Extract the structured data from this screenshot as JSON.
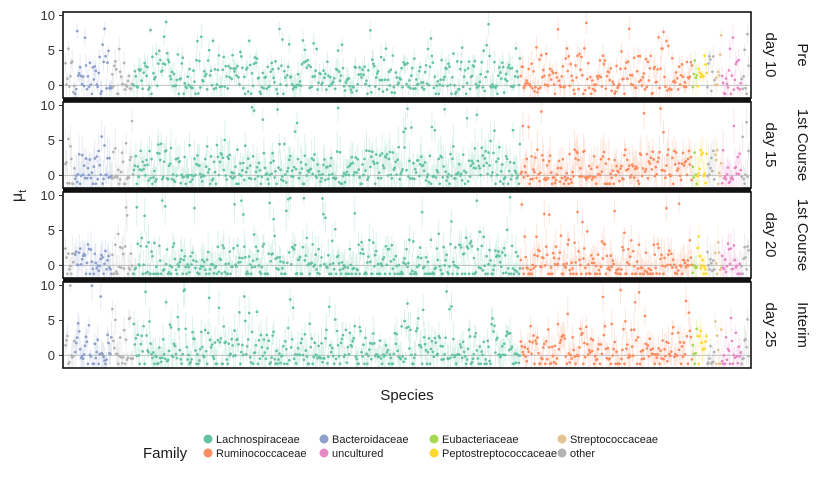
{
  "chart_data": {
    "type": "scatter",
    "title": "",
    "xlabel": "Species",
    "ylabel_symbol": "μ",
    "ylabel_subscript": "t",
    "ylim": [
      -1.8,
      10.5
    ],
    "yticks": [
      "0",
      "5",
      "10"
    ],
    "hline": 0,
    "n_species": 700,
    "facet_labels": [
      {
        "outer": "Pre",
        "inner": "day 10"
      },
      {
        "outer": "1st Course",
        "inner": "day 15"
      },
      {
        "outer": "1st Course",
        "inner": "day 20"
      },
      {
        "outer": "Interim",
        "inner": "day 25"
      }
    ],
    "legend": {
      "title": "Family",
      "entries": [
        {
          "name": "Lachnospiraceae",
          "color": "#66c2a5"
        },
        {
          "name": "Ruminococcaceae",
          "color": "#fc8d62"
        },
        {
          "name": "Bacteroidaceae",
          "color": "#8da0cb"
        },
        {
          "name": "uncultured",
          "color": "#e78ac3"
        },
        {
          "name": "Eubacteriaceae",
          "color": "#a6d854"
        },
        {
          "name": "Peptostreptococcaceae",
          "color": "#ffd92f"
        },
        {
          "name": "Streptococcaceae",
          "color": "#e5c494"
        },
        {
          "name": "other",
          "color": "#b3b3b3"
        }
      ]
    },
    "species_groups": [
      {
        "family": "other",
        "count": 10
      },
      {
        "family": "Bacteroidaceae",
        "count": 38
      },
      {
        "family": "other",
        "count": 22
      },
      {
        "family": "Lachnospiraceae",
        "count": 396
      },
      {
        "family": "Ruminococcaceae",
        "count": 176
      },
      {
        "family": "Eubacteriaceae",
        "count": 5
      },
      {
        "family": "Peptostreptococcaceae",
        "count": 10
      },
      {
        "family": "other",
        "count": 8
      },
      {
        "family": "Streptococcaceae",
        "count": 7
      },
      {
        "family": "uncultured",
        "count": 20
      },
      {
        "family": "other",
        "count": 8
      }
    ],
    "series_profile": [
      {
        "panel": "day 10",
        "center": 1.6,
        "spread": 2.6,
        "max": 9.2,
        "ci": 1.3
      },
      {
        "panel": "day 15",
        "center": 1.2,
        "spread": 2.5,
        "max": 9.8,
        "ci": 2.2
      },
      {
        "panel": "day 20",
        "center": 0.4,
        "spread": 2.8,
        "max": 10.0,
        "ci": 2.0
      },
      {
        "panel": "day 25",
        "center": 0.9,
        "spread": 2.9,
        "max": 10.0,
        "ci": 1.8
      }
    ]
  }
}
